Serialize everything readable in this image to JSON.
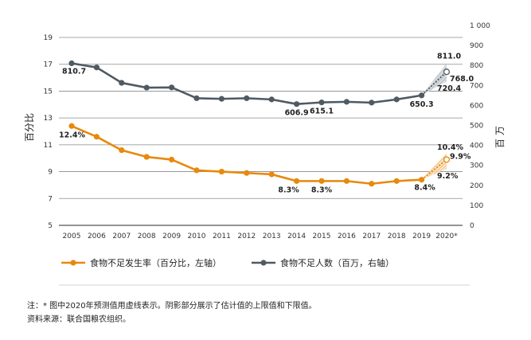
{
  "chart_data": {
    "type": "line",
    "categories": [
      "2005",
      "2006",
      "2007",
      "2008",
      "2009",
      "2010",
      "2011",
      "2012",
      "2013",
      "2014",
      "2015",
      "2016",
      "2017",
      "2018",
      "2019",
      "2020*"
    ],
    "y_left": {
      "label": "百分比",
      "ylim": [
        5,
        19
      ],
      "ticks": [
        "5",
        "7",
        "9",
        "11",
        "13",
        "15",
        "17",
        "19"
      ]
    },
    "y_right": {
      "label": "百万",
      "ylim": [
        0,
        1000
      ],
      "ticks": [
        "0",
        "100",
        "200",
        "300",
        "400",
        "500",
        "600",
        "700",
        "800",
        "900",
        "1 000"
      ]
    },
    "series": [
      {
        "name": "食物不足发生率（百分比，左轴）",
        "axis": "left",
        "color": "#e8890c",
        "values": [
          12.4,
          11.6,
          10.6,
          10.1,
          9.9,
          9.1,
          9.0,
          8.9,
          8.8,
          8.3,
          8.3,
          8.3,
          8.1,
          8.3,
          8.4,
          9.9
        ],
        "projection_range": {
          "low": 9.2,
          "high": 10.4
        },
        "data_labels": [
          {
            "index": 0,
            "text": "12.4%"
          },
          {
            "index": 9,
            "text": "8.3%"
          },
          {
            "index": 10,
            "text": "8.3%"
          },
          {
            "index": 14,
            "text": "8.4%"
          },
          {
            "index": 15,
            "text": "9.9%"
          }
        ],
        "range_labels": {
          "high": "10.4%",
          "low": "9.2%"
        }
      },
      {
        "name": "食物不足人数（百万，右轴）",
        "axis": "right",
        "color": "#4f5a63",
        "values": [
          810.7,
          790,
          713,
          689,
          690,
          636,
          633,
          636,
          630,
          606.9,
          615.1,
          618,
          614,
          630,
          650.3,
          768.0
        ],
        "projection_range": {
          "low": 720.4,
          "high": 811.0
        },
        "data_labels": [
          {
            "index": 0,
            "text": "810.7"
          },
          {
            "index": 9,
            "text": "606.9"
          },
          {
            "index": 10,
            "text": "615.1"
          },
          {
            "index": 14,
            "text": "650.3"
          },
          {
            "index": 15,
            "text": "768.0"
          }
        ],
        "range_labels": {
          "high": "811.0",
          "low": "720.4"
        }
      }
    ],
    "grid": true,
    "legend_position": "bottom"
  },
  "notes": {
    "line1": "注：* 图中2020年预测值用虚线表示。阴影部分展示了估计值的上限值和下限值。",
    "line2": "资料来源：联合国粮农组织。"
  }
}
